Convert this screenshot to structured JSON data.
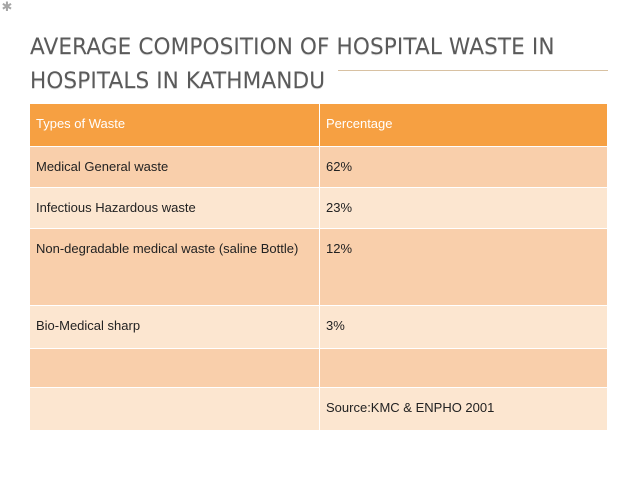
{
  "slide": {
    "bullet_glyph": "✱",
    "title_lines": [
      "AVERAGE COMPOSITION OF HOSPITAL WASTE IN",
      "HOSPITALS IN KATHMANDU"
    ]
  },
  "table": {
    "headers": [
      "Types of Waste",
      "Percentage"
    ],
    "rows": [
      [
        "Medical General waste",
        "62%"
      ],
      [
        "Infectious Hazardous waste",
        "23%"
      ],
      [
        "Non-degradable medical waste (saline Bottle)",
        "12%"
      ],
      [
        "Bio-Medical sharp",
        "3%"
      ],
      [
        "",
        ""
      ],
      [
        "",
        "Source:KMC & ENPHO 2001"
      ]
    ]
  },
  "colors": {
    "header_bg": "#f6a042",
    "row_dark": "#f9cfab",
    "row_light": "#fce6d0",
    "title_text": "#5a5a5a"
  }
}
